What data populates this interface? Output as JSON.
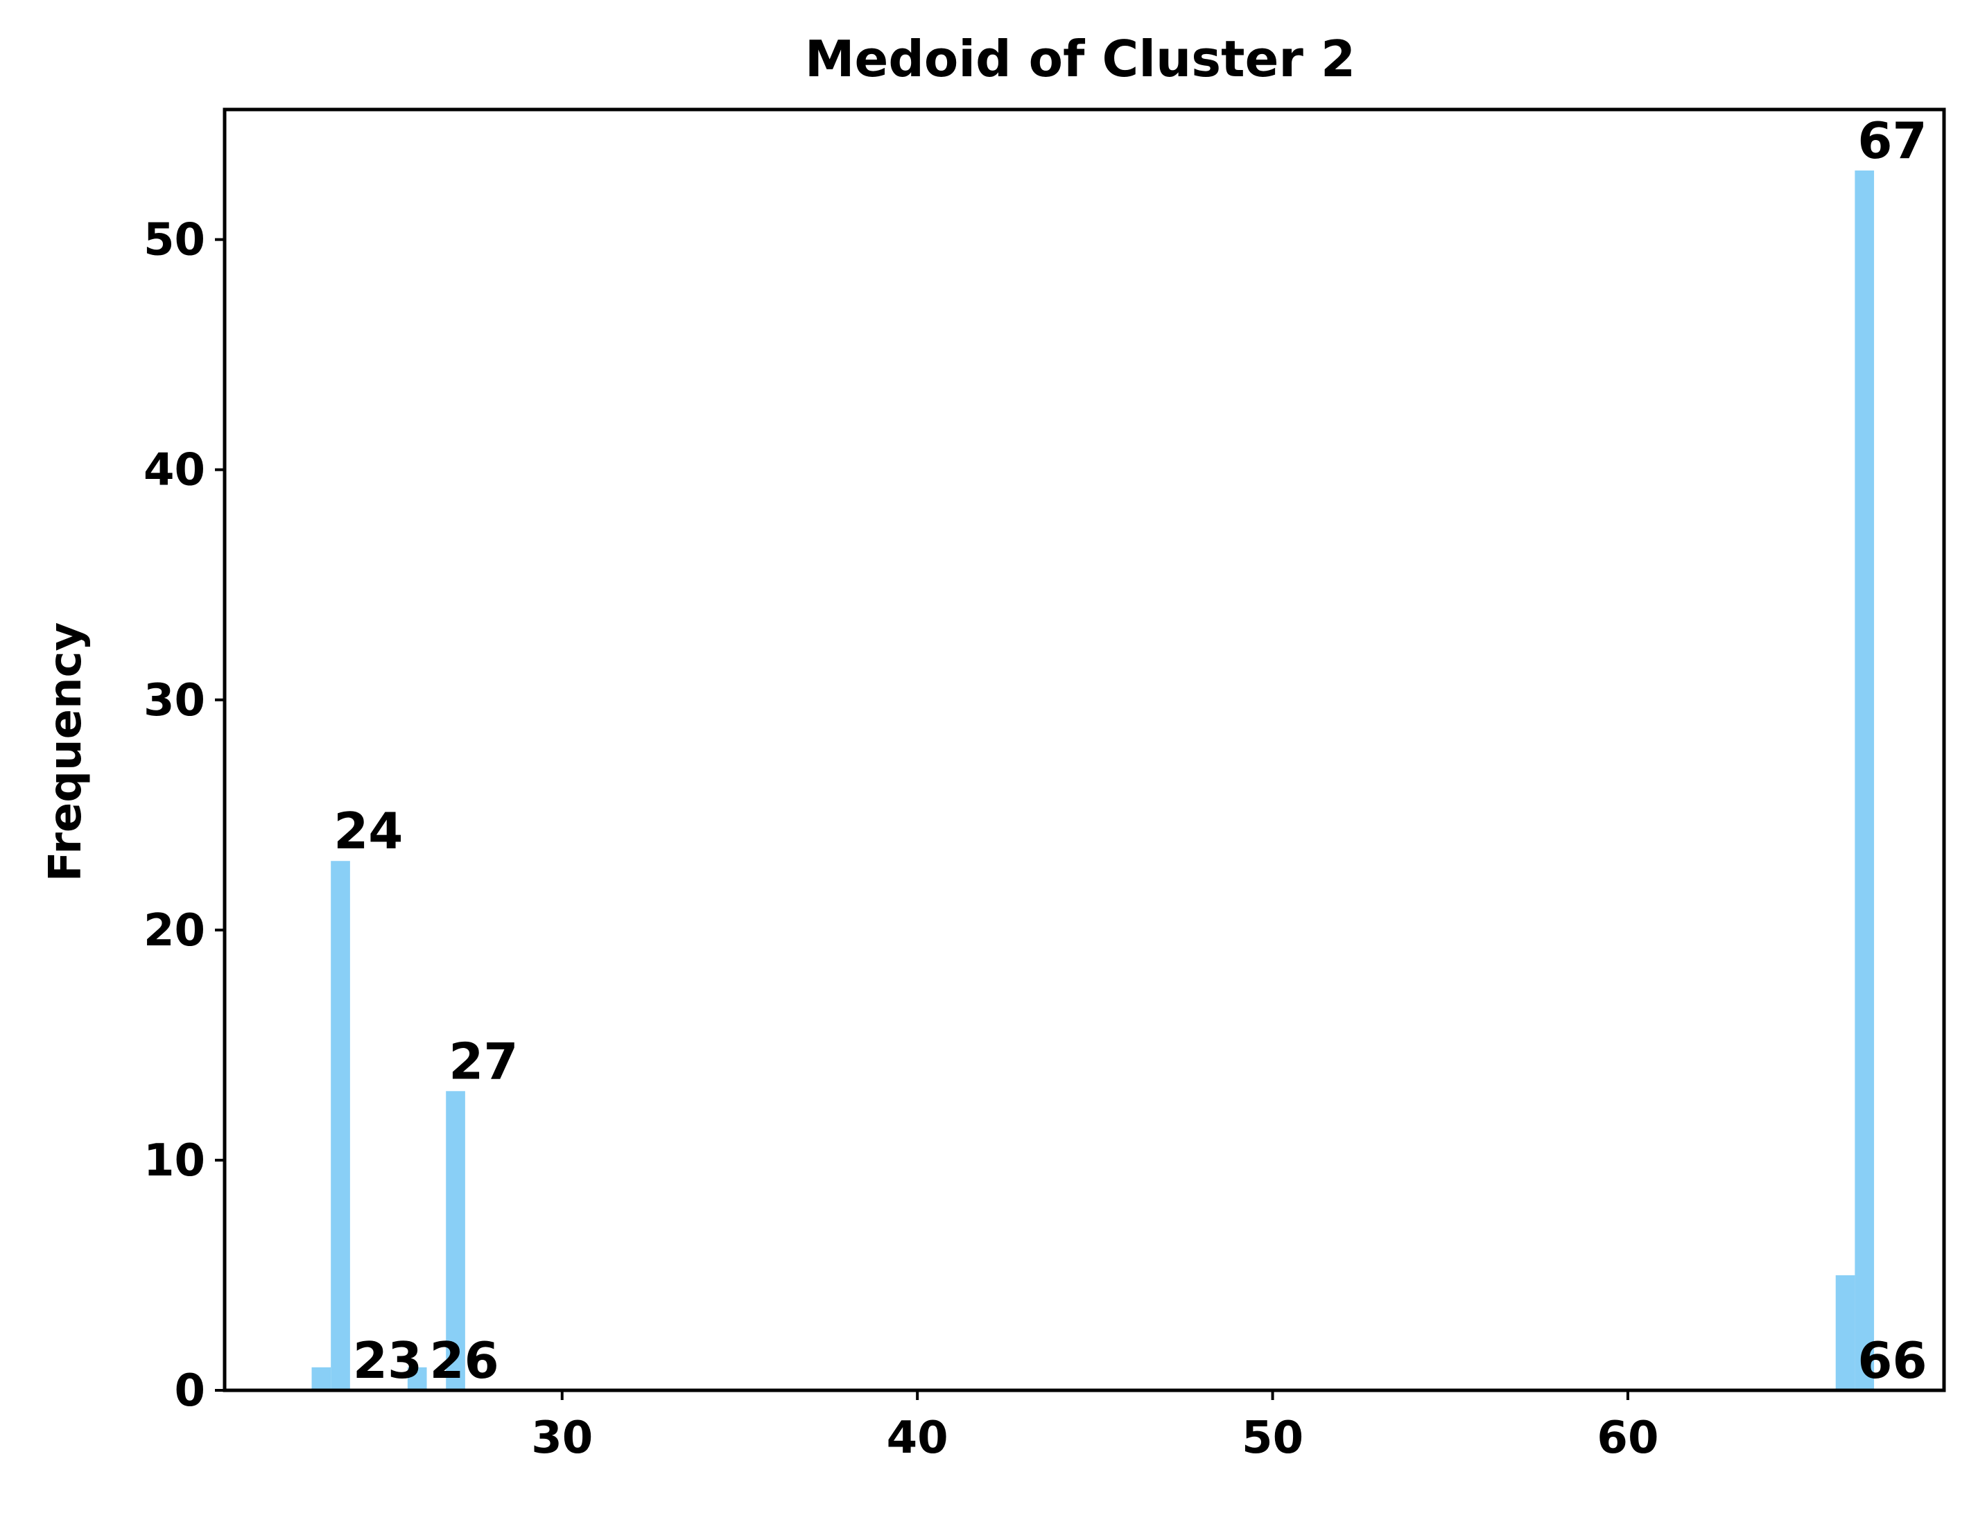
{
  "chart_data": {
    "type": "bar",
    "title": "Medoid of Cluster 2",
    "xlabel": "",
    "ylabel": "Frequency",
    "xlim": [
      20.5,
      68.9
    ],
    "ylim": [
      0,
      55.65
    ],
    "xticks": [
      30,
      40,
      50,
      60
    ],
    "yticks": [
      0,
      10,
      20,
      30,
      40,
      50
    ],
    "bar_color": "#89CFF6",
    "bar_width": 0.54,
    "bars": [
      {
        "x": 23.22,
        "value": 1
      },
      {
        "x": 23.76,
        "value": 23,
        "label": "24"
      },
      {
        "x": 24.3,
        "value": 0,
        "label": "23"
      },
      {
        "x": 25.92,
        "value": 1
      },
      {
        "x": 26.46,
        "value": 0,
        "label": "26"
      },
      {
        "x": 27.0,
        "value": 13,
        "label": "27"
      },
      {
        "x": 66.12,
        "value": 5
      },
      {
        "x": 66.66,
        "value": 53,
        "label": "67"
      },
      {
        "x": 66.66,
        "value": 0,
        "label": "66"
      }
    ],
    "grid": false,
    "legend": "none"
  }
}
